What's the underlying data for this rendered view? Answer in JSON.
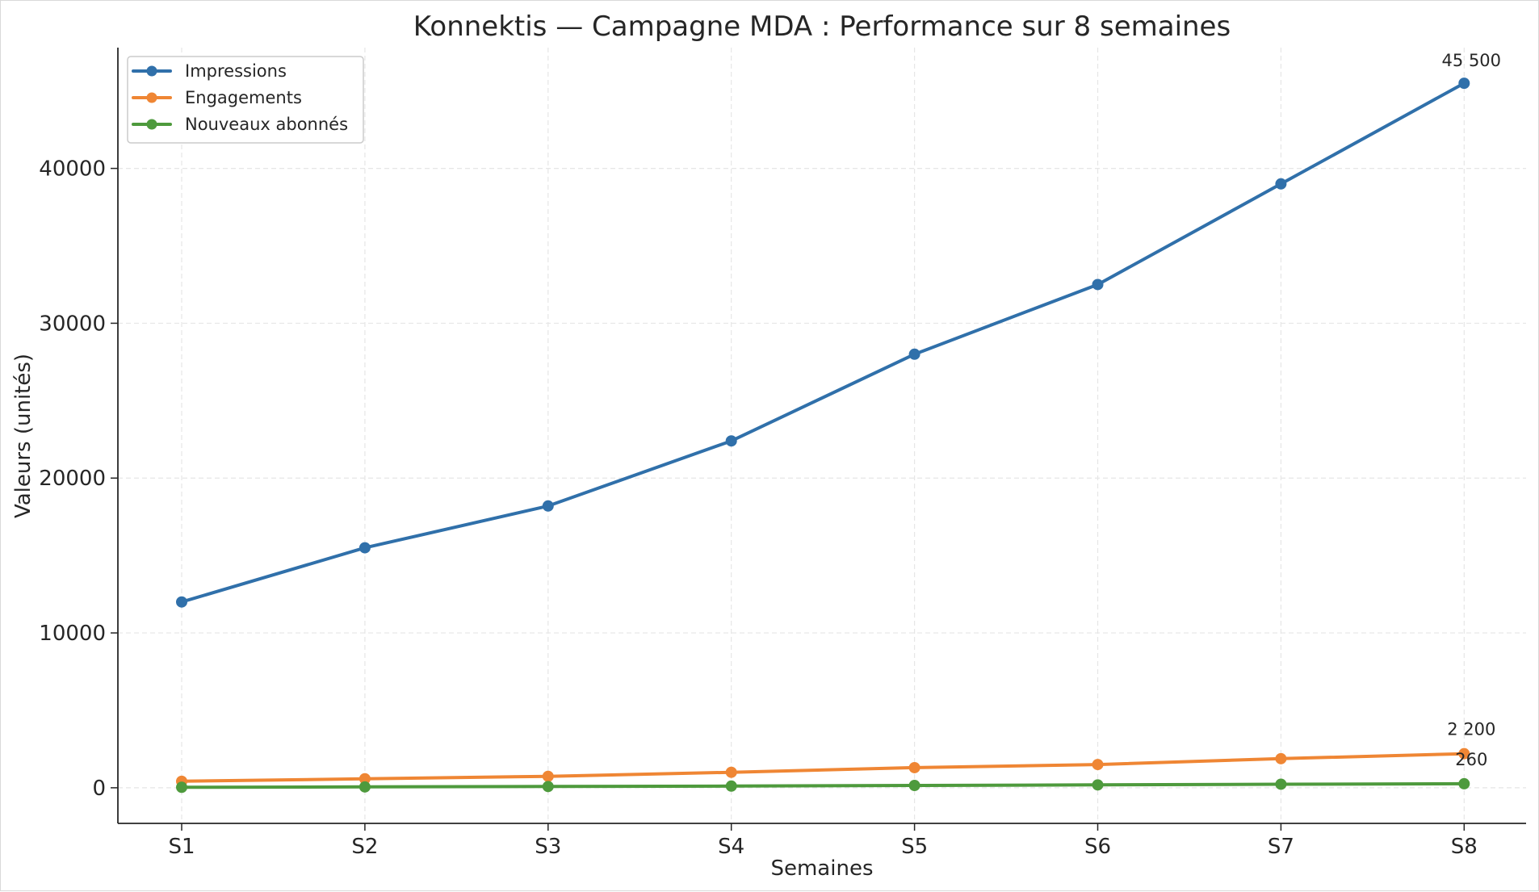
{
  "chart_data": {
    "type": "line",
    "title": "Konnektis — Campagne MDA : Performance sur 8 semaines",
    "xlabel": "Semaines",
    "ylabel": "Valeurs (unités)",
    "categories": [
      "S1",
      "S2",
      "S3",
      "S4",
      "S5",
      "S6",
      "S7",
      "S8"
    ],
    "ylim": [
      -2300,
      47800
    ],
    "yticks": [
      0,
      10000,
      20000,
      30000,
      40000
    ],
    "grid": true,
    "legend_position": "top-left",
    "series": [
      {
        "name": "Impressions",
        "color": "#3070aa",
        "values": [
          12000,
          15500,
          18200,
          22400,
          28000,
          32500,
          39000,
          45500
        ],
        "end_label": "45 500"
      },
      {
        "name": "Engagements",
        "color": "#ef8634",
        "values": [
          420,
          580,
          740,
          1000,
          1300,
          1500,
          1880,
          2200
        ],
        "end_label": "2 200"
      },
      {
        "name": "Nouveaux abonnés",
        "color": "#4e9a3d",
        "values": [
          30,
          55,
          80,
          110,
          150,
          185,
          230,
          260
        ],
        "end_label": "260"
      }
    ]
  }
}
